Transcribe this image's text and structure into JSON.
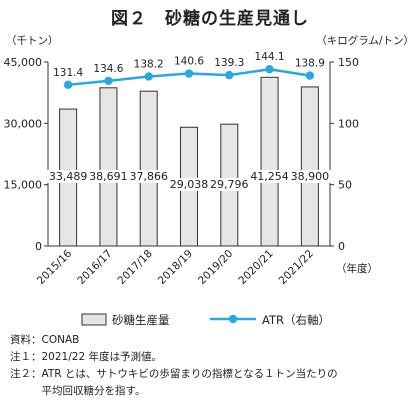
{
  "chart_data": {
    "type": "bar",
    "title": "図２　砂糖の生産見通し",
    "categories": [
      "2015/16",
      "2016/17",
      "2017/18",
      "2018/19",
      "2019/20",
      "2020/21",
      "2021/22"
    ],
    "xlabel": "（年度）",
    "left_axis": {
      "unit": "（千トン）",
      "ylim": [
        0,
        45000
      ],
      "ticks": [
        "0",
        "15,000",
        "30,000",
        "45,000"
      ]
    },
    "right_axis": {
      "unit": "（キログラム/トン）",
      "ylim": [
        0,
        150
      ],
      "ticks": [
        "0",
        "50",
        "100",
        "150"
      ]
    },
    "series": [
      {
        "name": "砂糖生産量",
        "type": "bar",
        "axis": "left",
        "values": [
          33489,
          38691,
          37866,
          29038,
          29796,
          41254,
          38900
        ],
        "labels": [
          "33,489",
          "38,691",
          "37,866",
          "29,038",
          "29,796",
          "41,254",
          "38,900"
        ],
        "fill": "#e6e6e6",
        "stroke": "#333333"
      },
      {
        "name": "ATR（右軸）",
        "type": "line",
        "axis": "right",
        "values": [
          131.4,
          134.6,
          138.2,
          140.6,
          139.3,
          144.1,
          138.9
        ],
        "labels": [
          "131.4",
          "134.6",
          "138.2",
          "140.6",
          "139.3",
          "144.1",
          "138.9"
        ],
        "color": "#2aa7dc"
      }
    ],
    "legend_position": "bottom",
    "grid": false
  },
  "notes": [
    "資料：CONAB",
    "注１：2021/22 年度は予測値。",
    "注２：ATR とは、サトウキビの歩留まりの指標となる１トン当たりの",
    "　　　平均回収糖分を指す。"
  ]
}
